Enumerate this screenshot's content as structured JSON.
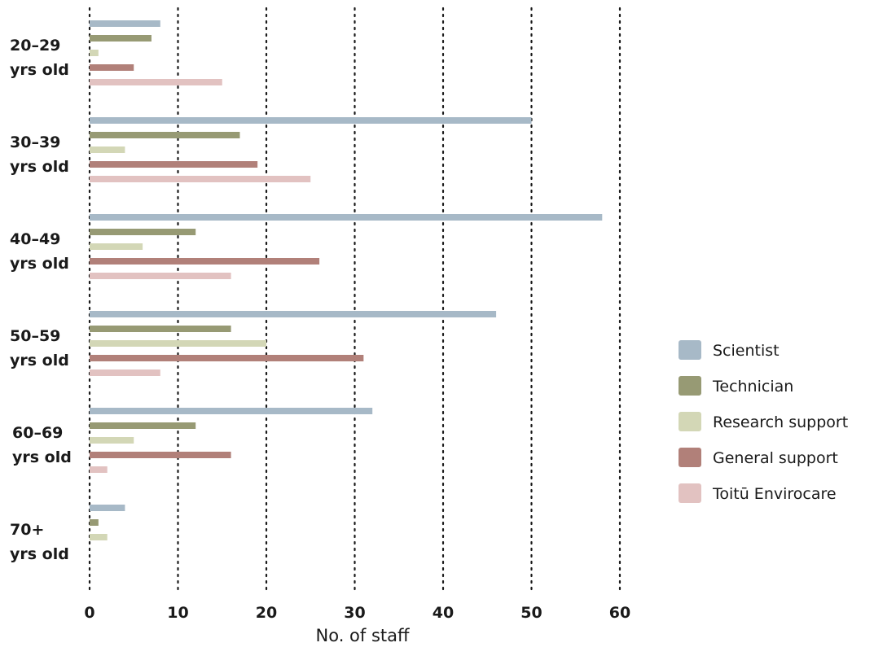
{
  "chart_data": {
    "type": "bar",
    "orientation": "horizontal",
    "categories": [
      [
        "20–29",
        "yrs old"
      ],
      [
        "30–39",
        "yrs old"
      ],
      [
        "40–49",
        "yrs old"
      ],
      [
        "50–59",
        "yrs old"
      ],
      [
        "60–69",
        "yrs old"
      ],
      [
        "70+",
        "yrs old"
      ]
    ],
    "series": [
      {
        "name": "Scientist",
        "color": "#a7b9c7",
        "values": [
          8,
          50,
          58,
          46,
          32,
          4
        ]
      },
      {
        "name": "Technician",
        "color": "#979a74",
        "values": [
          7,
          17,
          12,
          16,
          12,
          1
        ]
      },
      {
        "name": "Research support",
        "color": "#d3d7b6",
        "values": [
          1,
          4,
          6,
          20,
          5,
          2
        ]
      },
      {
        "name": "General support",
        "color": "#b18079",
        "values": [
          5,
          19,
          26,
          31,
          16,
          0
        ]
      },
      {
        "name": "Toitū Envirocare",
        "color": "#e2c2c1",
        "values": [
          15,
          25,
          16,
          8,
          2,
          0
        ]
      }
    ],
    "xlabel": "No. of staff",
    "xlim": [
      0,
      60
    ],
    "xticks": [
      0,
      10,
      20,
      30,
      40,
      50,
      60
    ],
    "grid": true,
    "legend": "right"
  }
}
